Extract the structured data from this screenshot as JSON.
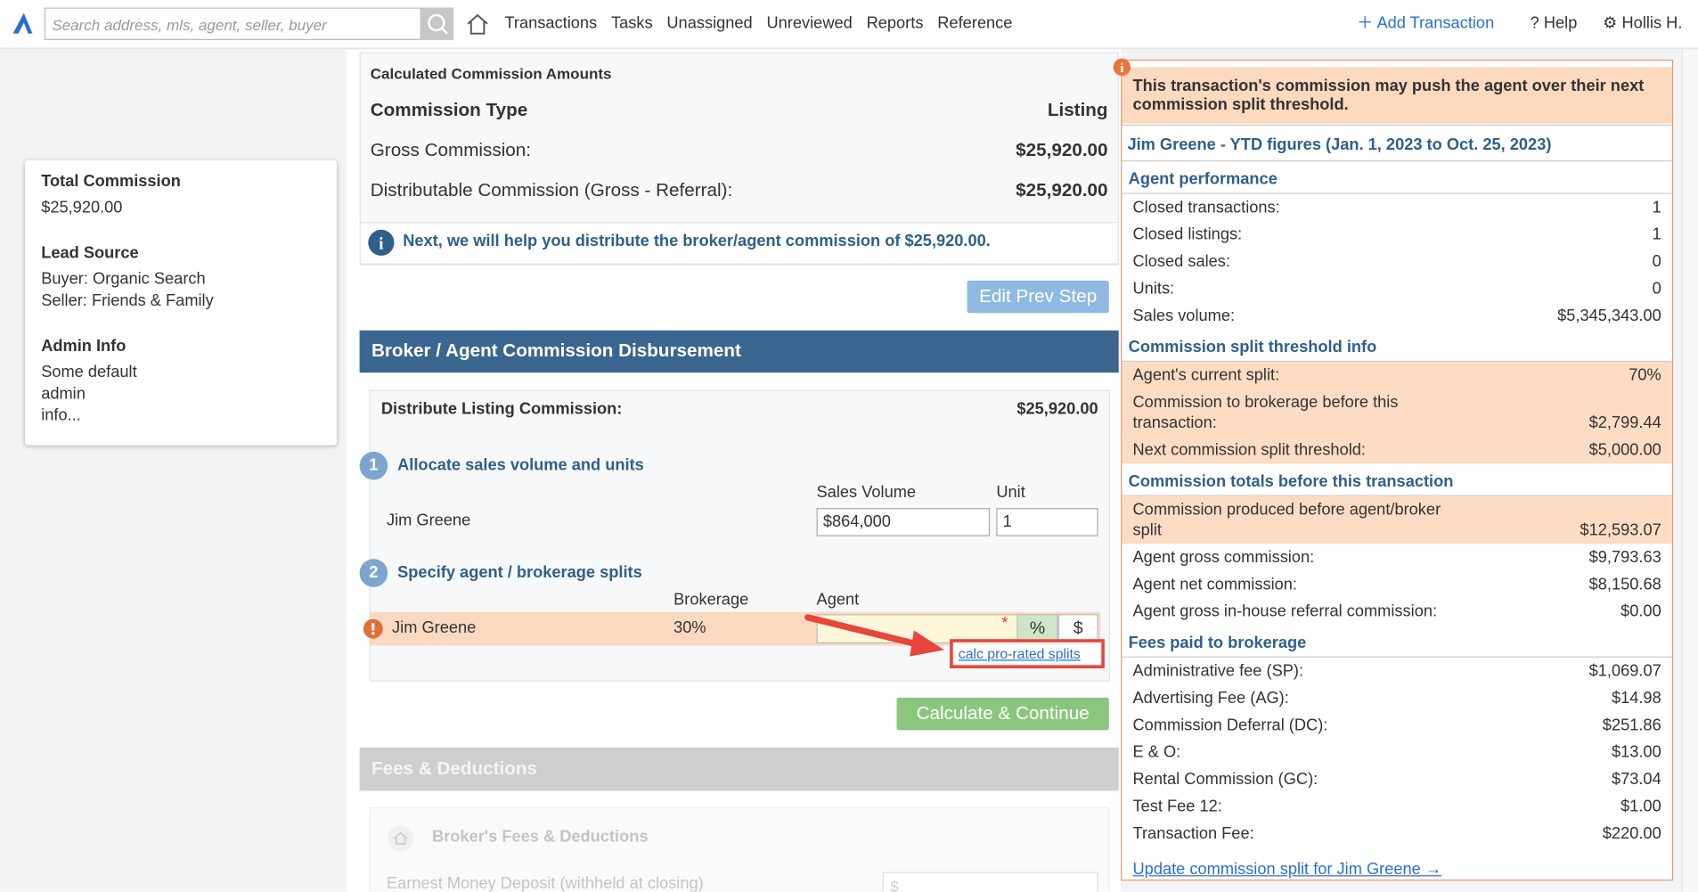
{
  "nav": {
    "search_placeholder": "Search address, mls, agent, seller, buyer",
    "links": [
      "Transactions",
      "Tasks",
      "Unassigned",
      "Unreviewed",
      "Reports",
      "Reference"
    ],
    "add_transaction": "Add Transaction",
    "help": "Help",
    "user": "Hollis H."
  },
  "left_panel": [
    {
      "title": "Total Commission",
      "lines": [
        "$25,920.00"
      ]
    },
    {
      "title": "Lead Source",
      "lines": [
        "Buyer: Organic Search",
        "Seller: Friends & Family"
      ]
    },
    {
      "title": "Admin Info",
      "lines": [
        "Some default",
        "admin",
        "info..."
      ]
    }
  ],
  "commission": {
    "title": "Calculated Commission Amounts",
    "type_label": "Commission Type",
    "type_value": "Listing",
    "rows": [
      {
        "label": "Gross Commission:",
        "value": "$25,920.00"
      },
      {
        "label": "Distributable Commission (Gross - Referral):",
        "value": "$25,920.00"
      }
    ],
    "info": "Next, we will help you distribute the broker/agent commission of $25,920.00."
  },
  "edit_prev_step": "Edit Prev Step",
  "disbursement": {
    "title": "Broker / Agent Commission Disbursement",
    "distribute_label": "Distribute Listing Commission:",
    "distribute_value": "$25,920.00",
    "step1": {
      "number": "1",
      "title": "Allocate sales volume and units"
    },
    "sales_volume_header": "Sales Volume",
    "unit_header": "Unit",
    "agent_name": "Jim Greene",
    "sales_volume": "$864,000",
    "unit": "1",
    "step2": {
      "number": "2",
      "title": "Specify agent / brokerage splits"
    },
    "brokerage_header": "Brokerage",
    "agent_header": "Agent",
    "split_agent": "Jim Greene",
    "brokerage": "30%",
    "asterisk": "*",
    "percent_button": "%",
    "dollar_button": "$",
    "calc_link": "calc pro-rated splits",
    "calculate_button": "Calculate & Continue"
  },
  "fees": {
    "title": "Fees & Deductions",
    "brokers_fees": "Broker's Fees & Deductions",
    "earnest_label": "Earnest Money Deposit (withheld at closing)",
    "earnest_placeholder": "$"
  },
  "right_panel": {
    "warning": "This transaction's commission may push the agent over their next commission split threshold.",
    "ytd_title": "Jim Greene - YTD figures (Jan. 1, 2023 to Oct. 25, 2023)",
    "sections": [
      {
        "title": "Agent performance",
        "rows": [
          {
            "label": "Closed transactions:",
            "value": "1"
          },
          {
            "label": "Closed listings:",
            "value": "1"
          },
          {
            "label": "Closed sales:",
            "value": "0"
          },
          {
            "label": "Units:",
            "value": "0"
          },
          {
            "label": "Sales volume:",
            "value": "$5,345,343.00"
          }
        ]
      },
      {
        "title": "Commission split threshold info",
        "rows": [
          {
            "label": "Agent's current split:",
            "value": "70%"
          },
          {
            "label": "Commission to brokerage before this transaction:",
            "value": "$2,799.44"
          },
          {
            "label": "Next commission split threshold:",
            "value": "$5,000.00"
          }
        ]
      },
      {
        "title": "Commission totals before this transaction",
        "rows": [
          {
            "label": "Commission produced before agent/broker split",
            "value": "$12,593.07"
          },
          {
            "label": "Agent gross commission:",
            "value": "$9,793.63"
          },
          {
            "label": "Agent net commission:",
            "value": "$8,150.68"
          },
          {
            "label": "Agent gross in-house referral commission:",
            "value": "$0.00"
          }
        ]
      },
      {
        "title": "Fees paid to brokerage",
        "rows": [
          {
            "label": "Administrative fee (SP):",
            "value": "$1,069.07"
          },
          {
            "label": "Advertising Fee (AG):",
            "value": "$14.98"
          },
          {
            "label": "Commission Deferral (DC):",
            "value": "$251.86"
          },
          {
            "label": "E & O:",
            "value": "$13.00"
          },
          {
            "label": "Rental Commission (GC):",
            "value": "$73.04"
          },
          {
            "label": "Test Fee 12:",
            "value": "$1.00"
          },
          {
            "label": "Transaction Fee:",
            "value": "$220.00"
          }
        ]
      }
    ],
    "update_link": "Update commission split for Jim Greene →"
  }
}
